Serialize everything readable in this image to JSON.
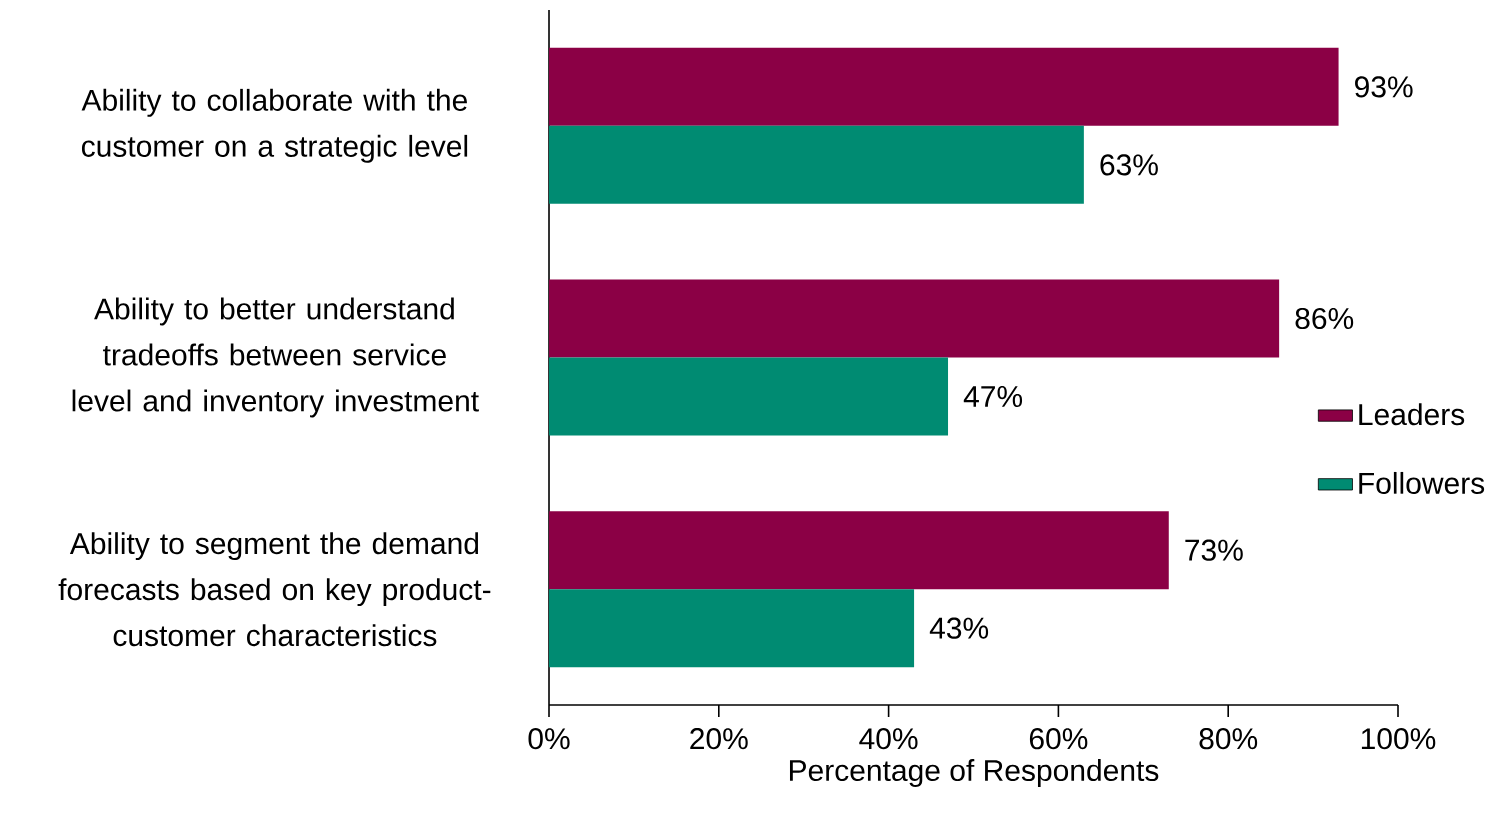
{
  "chart_data": {
    "type": "bar",
    "orientation": "horizontal",
    "xlabel": "Percentage of Respondents",
    "categories": [
      "Ability to collaborate with the customer on a strategic level",
      "Ability to better understand tradeoffs between service level and inventory investment",
      "Ability to segment the demand forecasts based on key product-customer characteristics"
    ],
    "series": [
      {
        "name": "Leaders",
        "color": "#8b0045",
        "values": [
          93,
          86,
          73
        ],
        "value_labels": [
          "93%",
          "86%",
          "73%"
        ]
      },
      {
        "name": "Followers",
        "color": "#008b72",
        "values": [
          63,
          47,
          43
        ],
        "value_labels": [
          "63%",
          "47%",
          "43%"
        ]
      }
    ],
    "xlim": [
      0,
      100
    ],
    "xticks": [
      {
        "value": 0,
        "label": "0%"
      },
      {
        "value": 20,
        "label": "20%"
      },
      {
        "value": 40,
        "label": "40%"
      },
      {
        "value": 60,
        "label": "60%"
      },
      {
        "value": 80,
        "label": "80%"
      },
      {
        "value": 100,
        "label": "100%"
      }
    ],
    "legend": "right",
    "grid": false
  }
}
